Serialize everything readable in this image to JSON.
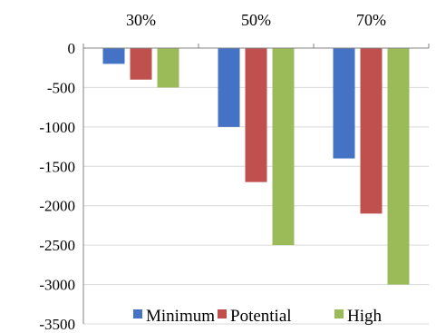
{
  "chart_data": {
    "type": "bar",
    "title": "",
    "xlabel": "",
    "ylabel": "",
    "categories": [
      "30%",
      "50%",
      "70%"
    ],
    "series": [
      {
        "name": "Minimum",
        "color": "#4472C4",
        "values": [
          -200,
          -1000,
          -1400
        ]
      },
      {
        "name": "Potential",
        "color": "#C0504D",
        "values": [
          -400,
          -1700,
          -2100
        ]
      },
      {
        "name": "High",
        "color": "#9BBB59",
        "values": [
          -500,
          -2500,
          -3000
        ]
      }
    ],
    "ylim": [
      -3500,
      0
    ],
    "yticks": [
      0,
      -500,
      -1000,
      -1500,
      -2000,
      -2500,
      -3000,
      -3500
    ],
    "ytick_labels": [
      "0",
      "-500",
      "-1000",
      "-1500",
      "-2000",
      "-2500",
      "-3000",
      "-3500"
    ],
    "category_axis_position": "top",
    "grid": "horizontal",
    "grid_color": "#d9d9d9",
    "legend_position": "bottom-inside"
  }
}
